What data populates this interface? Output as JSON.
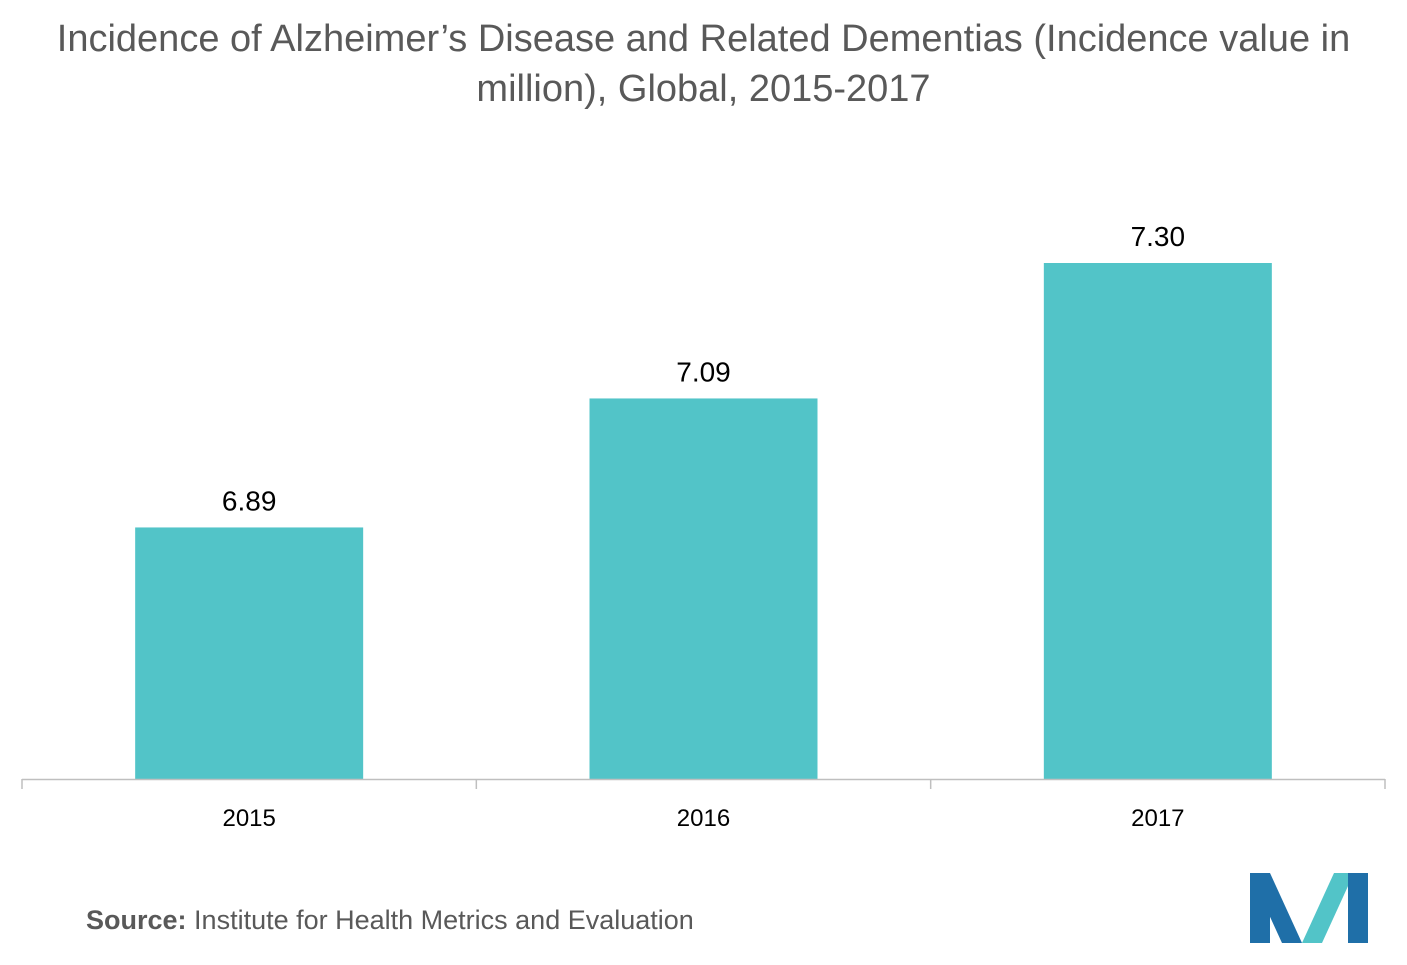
{
  "title": "Incidence of Alzheimer’s Disease and Related Dementias (Incidence value in million), Global, 2015-2017",
  "source": {
    "label": "Source:",
    "text": "Institute for Health Metrics and Evaluation"
  },
  "colors": {
    "bar": "#52C4C8",
    "axis": "#BFBFBF",
    "text": "#595959",
    "data_label": "#000000",
    "logo_dark": "#1F6FA8",
    "logo_light": "#52C4C8"
  },
  "chart_data": {
    "type": "bar",
    "categories": [
      "2015",
      "2016",
      "2017"
    ],
    "values": [
      6.89,
      7.09,
      7.3
    ],
    "data_labels": [
      "6.89",
      "7.09",
      "7.30"
    ],
    "title": "Incidence of Alzheimer’s Disease and Related Dementias (Incidence value in million), Global, 2015-2017",
    "xlabel": "",
    "ylabel": "",
    "ylim": [
      6.5,
      7.35
    ],
    "grid": false,
    "legend": "none"
  }
}
